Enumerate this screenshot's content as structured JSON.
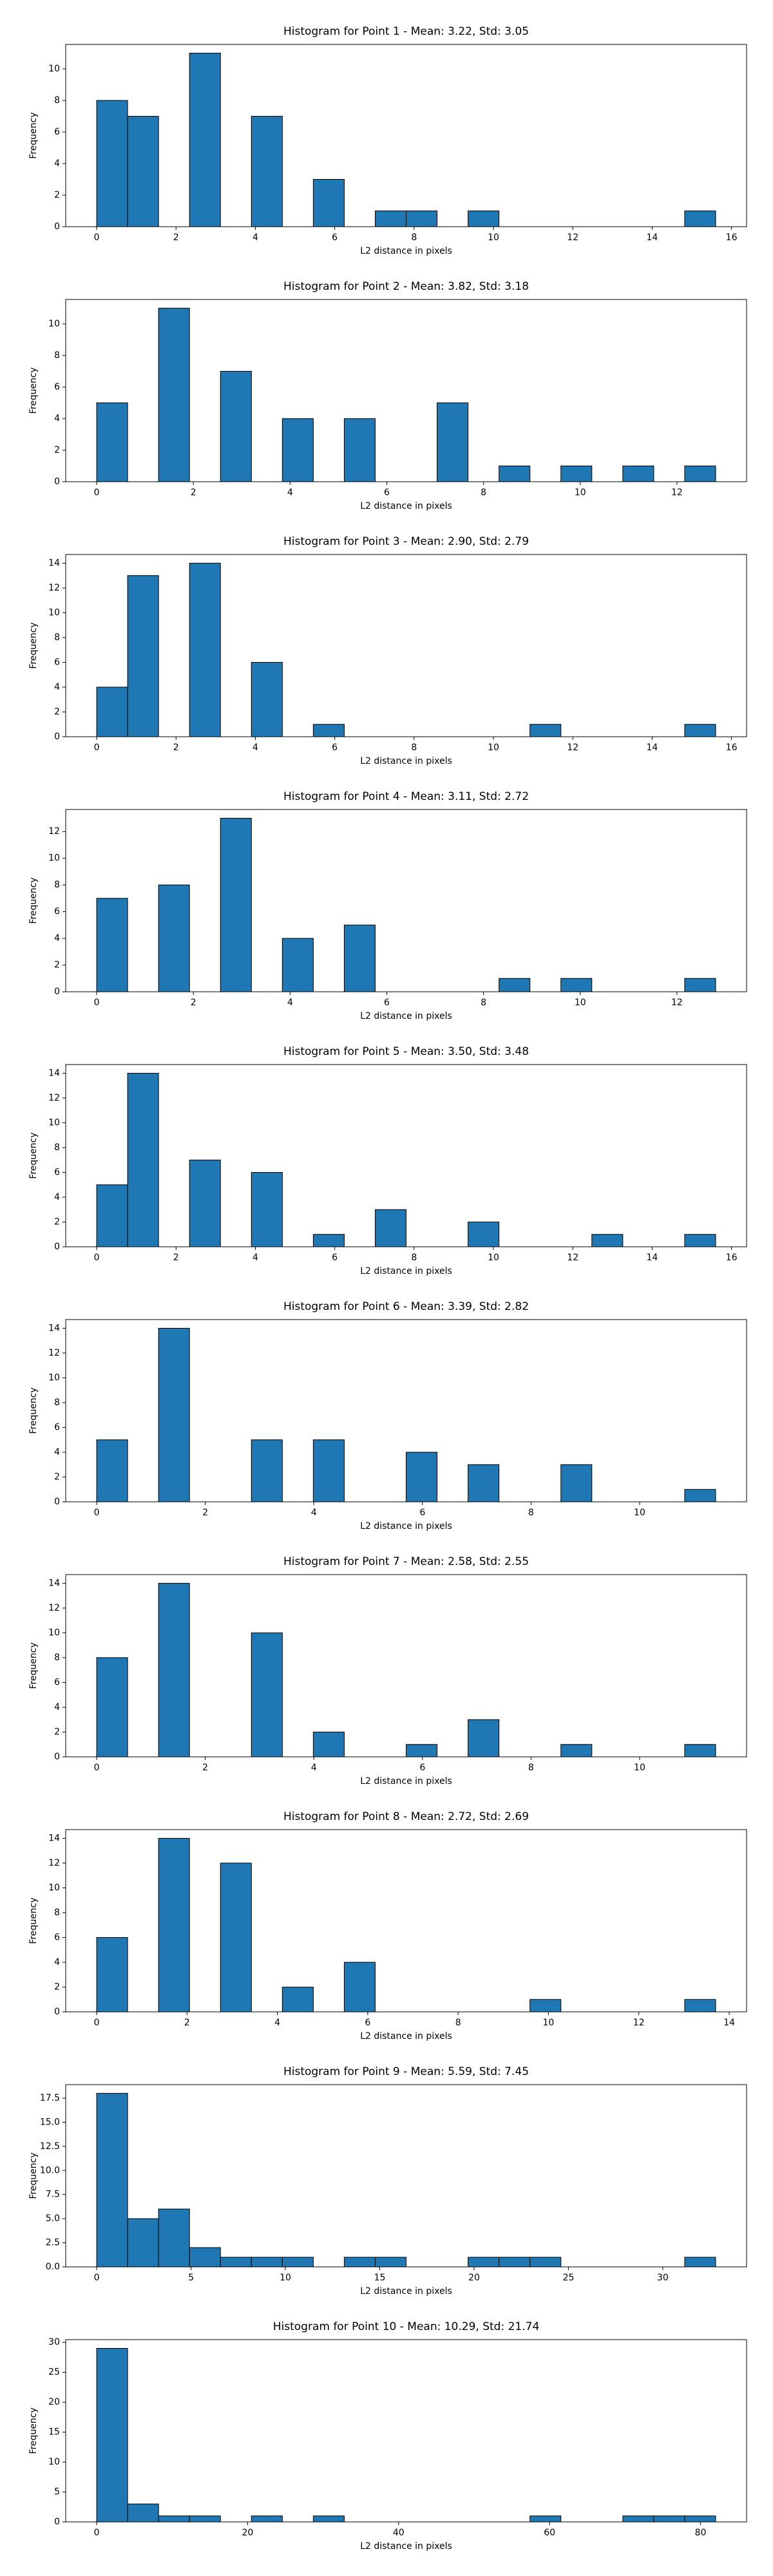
{
  "chart_data": [
    {
      "type": "histogram",
      "title": "Histogram for Point 1 - Mean: 3.22, Std: 3.05",
      "x_label": "L2 distance in pixels",
      "y_label": "Frequency",
      "color": "#1f77b4",
      "edgecolor": "#000000",
      "bins": [
        0,
        0.78,
        1.56,
        2.34,
        3.12,
        3.9,
        4.68,
        5.46,
        6.24,
        7.02,
        7.8,
        8.58,
        9.36,
        10.14,
        10.92,
        11.7,
        12.48,
        13.26,
        14.04,
        14.82,
        15.6
      ],
      "values": [
        8,
        7,
        0,
        11,
        0,
        7,
        0,
        3,
        0,
        1,
        1,
        0,
        1,
        0,
        0,
        0,
        0,
        0,
        0,
        1
      ],
      "xlim": [
        -0.78,
        16.38
      ],
      "xticks": [
        0,
        2,
        4,
        6,
        8,
        10,
        12,
        14,
        16
      ],
      "ylim": [
        0,
        11.55
      ],
      "yticks": [
        0,
        2,
        4,
        6,
        8,
        10
      ]
    },
    {
      "type": "histogram",
      "title": "Histogram for Point 2 - Mean: 3.82, Std: 3.18",
      "x_label": "L2 distance in pixels",
      "y_label": "Frequency",
      "color": "#1f77b4",
      "edgecolor": "#000000",
      "bins": [
        0,
        0.64,
        1.28,
        1.92,
        2.56,
        3.2,
        3.84,
        4.48,
        5.12,
        5.76,
        6.4,
        7.04,
        7.68,
        8.32,
        8.96,
        9.6,
        10.24,
        10.88,
        11.52,
        12.16,
        12.8
      ],
      "values": [
        5,
        0,
        11,
        0,
        7,
        0,
        4,
        0,
        4,
        0,
        0,
        5,
        0,
        1,
        0,
        1,
        0,
        1,
        0,
        1
      ],
      "xlim": [
        -0.64,
        13.44
      ],
      "xticks": [
        0,
        2,
        4,
        6,
        8,
        10,
        12
      ],
      "ylim": [
        0,
        11.55
      ],
      "yticks": [
        0,
        2,
        4,
        6,
        8,
        10
      ]
    },
    {
      "type": "histogram",
      "title": "Histogram for Point 3 - Mean: 2.90, Std: 2.79",
      "x_label": "L2 distance in pixels",
      "y_label": "Frequency",
      "color": "#1f77b4",
      "edgecolor": "#000000",
      "bins": [
        0,
        0.78,
        1.56,
        2.34,
        3.12,
        3.9,
        4.68,
        5.46,
        6.24,
        7.02,
        7.8,
        8.58,
        9.36,
        10.14,
        10.92,
        11.7,
        12.48,
        13.26,
        14.04,
        14.82,
        15.6
      ],
      "values": [
        4,
        13,
        0,
        14,
        0,
        6,
        0,
        1,
        0,
        0,
        0,
        0,
        0,
        0,
        1,
        0,
        0,
        0,
        0,
        1
      ],
      "xlim": [
        -0.78,
        16.38
      ],
      "xticks": [
        0,
        2,
        4,
        6,
        8,
        10,
        12,
        14,
        16
      ],
      "ylim": [
        0,
        14.7
      ],
      "yticks": [
        0,
        2,
        4,
        6,
        8,
        10,
        12,
        14
      ]
    },
    {
      "type": "histogram",
      "title": "Histogram for Point 4 - Mean: 3.11, Std: 2.72",
      "x_label": "L2 distance in pixels",
      "y_label": "Frequency",
      "color": "#1f77b4",
      "edgecolor": "#000000",
      "bins": [
        0,
        0.64,
        1.28,
        1.92,
        2.56,
        3.2,
        3.84,
        4.48,
        5.12,
        5.76,
        6.4,
        7.04,
        7.68,
        8.32,
        8.96,
        9.6,
        10.24,
        10.88,
        11.52,
        12.16,
        12.8
      ],
      "values": [
        7,
        0,
        8,
        0,
        13,
        0,
        4,
        0,
        5,
        0,
        0,
        0,
        0,
        1,
        0,
        1,
        0,
        0,
        0,
        1
      ],
      "xlim": [
        -0.64,
        13.44
      ],
      "xticks": [
        0,
        2,
        4,
        6,
        8,
        10,
        12
      ],
      "ylim": [
        0,
        13.65
      ],
      "yticks": [
        0,
        2,
        4,
        6,
        8,
        10,
        12
      ]
    },
    {
      "type": "histogram",
      "title": "Histogram for Point 5 - Mean: 3.50, Std: 3.48",
      "x_label": "L2 distance in pixels",
      "y_label": "Frequency",
      "color": "#1f77b4",
      "edgecolor": "#000000",
      "bins": [
        0,
        0.78,
        1.56,
        2.34,
        3.12,
        3.9,
        4.68,
        5.46,
        6.24,
        7.02,
        7.8,
        8.58,
        9.36,
        10.14,
        10.92,
        11.7,
        12.48,
        13.26,
        14.04,
        14.82,
        15.6
      ],
      "values": [
        5,
        14,
        0,
        7,
        0,
        6,
        0,
        1,
        0,
        3,
        0,
        0,
        2,
        0,
        0,
        0,
        1,
        0,
        0,
        1
      ],
      "xlim": [
        -0.78,
        16.38
      ],
      "xticks": [
        0,
        2,
        4,
        6,
        8,
        10,
        12,
        14,
        16
      ],
      "ylim": [
        0,
        14.7
      ],
      "yticks": [
        0,
        2,
        4,
        6,
        8,
        10,
        12,
        14
      ]
    },
    {
      "type": "histogram",
      "title": "Histogram for Point 6 - Mean: 3.39, Std: 2.82",
      "x_label": "L2 distance in pixels",
      "y_label": "Frequency",
      "color": "#1f77b4",
      "edgecolor": "#000000",
      "bins": [
        0,
        0.57,
        1.14,
        1.71,
        2.28,
        2.85,
        3.42,
        3.99,
        4.56,
        5.13,
        5.7,
        6.27,
        6.84,
        7.41,
        7.98,
        8.55,
        9.12,
        9.69,
        10.26,
        10.83,
        11.4
      ],
      "values": [
        5,
        0,
        14,
        0,
        0,
        5,
        0,
        5,
        0,
        0,
        4,
        0,
        3,
        0,
        0,
        3,
        0,
        0,
        0,
        1
      ],
      "xlim": [
        -0.57,
        11.97
      ],
      "xticks": [
        0,
        2,
        4,
        6,
        8,
        10
      ],
      "ylim": [
        0,
        14.7
      ],
      "yticks": [
        0,
        2,
        4,
        6,
        8,
        10,
        12,
        14
      ]
    },
    {
      "type": "histogram",
      "title": "Histogram for Point 7 - Mean: 2.58, Std: 2.55",
      "x_label": "L2 distance in pixels",
      "y_label": "Frequency",
      "color": "#1f77b4",
      "edgecolor": "#000000",
      "bins": [
        0,
        0.57,
        1.14,
        1.71,
        2.28,
        2.85,
        3.42,
        3.99,
        4.56,
        5.13,
        5.7,
        6.27,
        6.84,
        7.41,
        7.98,
        8.55,
        9.12,
        9.69,
        10.26,
        10.83,
        11.4
      ],
      "values": [
        8,
        0,
        14,
        0,
        0,
        10,
        0,
        2,
        0,
        0,
        1,
        0,
        3,
        0,
        0,
        1,
        0,
        0,
        0,
        1
      ],
      "xlim": [
        -0.57,
        11.97
      ],
      "xticks": [
        0,
        2,
        4,
        6,
        8,
        10
      ],
      "ylim": [
        0,
        14.7
      ],
      "yticks": [
        0,
        2,
        4,
        6,
        8,
        10,
        12,
        14
      ]
    },
    {
      "type": "histogram",
      "title": "Histogram for Point 8 - Mean: 2.72, Std: 2.69",
      "x_label": "L2 distance in pixels",
      "y_label": "Frequency",
      "color": "#1f77b4",
      "edgecolor": "#000000",
      "bins": [
        0,
        0.685,
        1.37,
        2.055,
        2.74,
        3.425,
        4.11,
        4.795,
        5.48,
        6.165,
        6.85,
        7.535,
        8.22,
        8.905,
        9.59,
        10.275,
        10.96,
        11.645,
        12.33,
        13.015,
        13.7
      ],
      "values": [
        6,
        0,
        14,
        0,
        12,
        0,
        2,
        0,
        4,
        0,
        0,
        0,
        0,
        0,
        1,
        0,
        0,
        0,
        0,
        1
      ],
      "xlim": [
        -0.685,
        14.385
      ],
      "xticks": [
        0,
        2,
        4,
        6,
        8,
        10,
        12,
        14
      ],
      "ylim": [
        0,
        14.7
      ],
      "yticks": [
        0,
        2,
        4,
        6,
        8,
        10,
        12,
        14
      ]
    },
    {
      "type": "histogram",
      "title": "Histogram for Point 9 - Mean: 5.59, Std: 7.45",
      "x_label": "L2 distance in pixels",
      "y_label": "Frequency",
      "color": "#1f77b4",
      "edgecolor": "#000000",
      "bins": [
        0,
        1.64,
        3.28,
        4.92,
        6.56,
        8.2,
        9.84,
        11.48,
        13.12,
        14.76,
        16.4,
        18.04,
        19.68,
        21.32,
        22.96,
        24.6,
        26.24,
        27.88,
        29.52,
        31.16,
        32.8
      ],
      "values": [
        18,
        5,
        6,
        2,
        1,
        1,
        1,
        0,
        1,
        1,
        0,
        0,
        1,
        1,
        1,
        0,
        0,
        0,
        0,
        1
      ],
      "xlim": [
        -1.64,
        34.44
      ],
      "xticks": [
        0,
        5,
        10,
        15,
        20,
        25,
        30
      ],
      "ylim": [
        0,
        18.9
      ],
      "yticks": [
        {
          "value": 0,
          "label": "0.0"
        },
        {
          "value": 2.5,
          "label": "2.5"
        },
        {
          "value": 5,
          "label": "5.0"
        },
        {
          "value": 7.5,
          "label": "7.5"
        },
        {
          "value": 10,
          "label": "10.0"
        },
        {
          "value": 12.5,
          "label": "12.5"
        },
        {
          "value": 15,
          "label": "15.0"
        },
        {
          "value": 17.5,
          "label": "17.5"
        }
      ]
    },
    {
      "type": "histogram",
      "title": "Histogram for Point 10 - Mean: 10.29, Std: 21.74",
      "x_label": "L2 distance in pixels",
      "y_label": "Frequency",
      "color": "#1f77b4",
      "edgecolor": "#000000",
      "bins": [
        0,
        4.1,
        8.2,
        12.3,
        16.4,
        20.5,
        24.6,
        28.7,
        32.8,
        36.9,
        41,
        45.1,
        49.2,
        53.3,
        57.4,
        61.5,
        65.6,
        69.7,
        73.8,
        77.9,
        82
      ],
      "values": [
        29,
        3,
        1,
        1,
        0,
        1,
        0,
        1,
        0,
        0,
        0,
        0,
        0,
        0,
        1,
        0,
        0,
        1,
        1,
        1
      ],
      "xlim": [
        -4.1,
        86.1
      ],
      "xticks": [
        0,
        20,
        40,
        60,
        80
      ],
      "ylim": [
        0,
        30.45
      ],
      "yticks": [
        0,
        5,
        10,
        15,
        20,
        25,
        30
      ]
    }
  ]
}
